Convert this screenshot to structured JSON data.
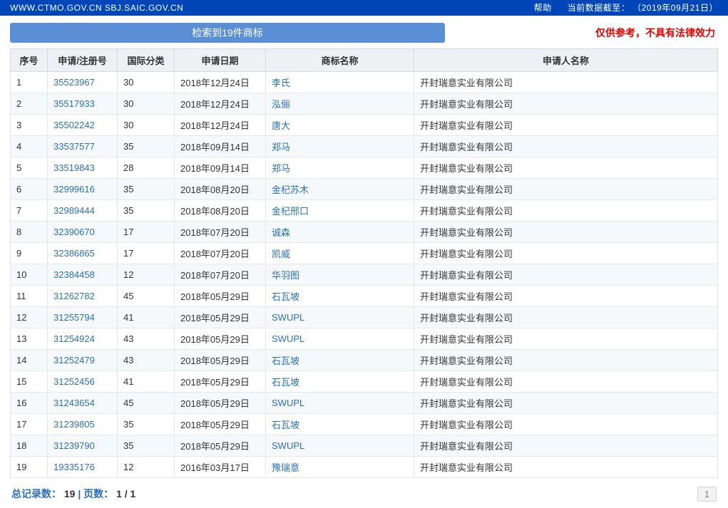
{
  "topbar": {
    "domain": "WWW.CTMO.GOV.CN  SBJ.SAIC.GOV.CN",
    "help": "帮助",
    "dataAsOfLabel": "当前数据截至：",
    "dataAsOfDate": "（2019年09月21日）"
  },
  "resultBadge": "检索到19件商标",
  "disclaimer": "仅供参考，不具有法律效力",
  "columns": [
    "序号",
    "申请/注册号",
    "国际分类",
    "申请日期",
    "商标名称",
    "申请人名称"
  ],
  "rows": [
    {
      "seq": "1",
      "reg": "35523967",
      "cls": "30",
      "date": "2018年12月24日",
      "name": "李氏",
      "applicant": "开封瑞意实业有限公司"
    },
    {
      "seq": "2",
      "reg": "35517933",
      "cls": "30",
      "date": "2018年12月24日",
      "name": "泓俪",
      "applicant": "开封瑞意实业有限公司"
    },
    {
      "seq": "3",
      "reg": "35502242",
      "cls": "30",
      "date": "2018年12月24日",
      "name": "唐大",
      "applicant": "开封瑞意实业有限公司"
    },
    {
      "seq": "4",
      "reg": "33537577",
      "cls": "35",
      "date": "2018年09月14日",
      "name": "郑马",
      "applicant": "开封瑞意实业有限公司"
    },
    {
      "seq": "5",
      "reg": "33519843",
      "cls": "28",
      "date": "2018年09月14日",
      "name": "郑马",
      "applicant": "开封瑞意实业有限公司"
    },
    {
      "seq": "6",
      "reg": "32999616",
      "cls": "35",
      "date": "2018年08月20日",
      "name": "金杞苏木",
      "applicant": "开封瑞意实业有限公司"
    },
    {
      "seq": "7",
      "reg": "32989444",
      "cls": "35",
      "date": "2018年08月20日",
      "name": "金杞邢口",
      "applicant": "开封瑞意实业有限公司"
    },
    {
      "seq": "8",
      "reg": "32390670",
      "cls": "17",
      "date": "2018年07月20日",
      "name": "诚森",
      "applicant": "开封瑞意实业有限公司"
    },
    {
      "seq": "9",
      "reg": "32386865",
      "cls": "17",
      "date": "2018年07月20日",
      "name": "凯威",
      "applicant": "开封瑞意实业有限公司"
    },
    {
      "seq": "10",
      "reg": "32384458",
      "cls": "12",
      "date": "2018年07月20日",
      "name": "华羽图",
      "applicant": "开封瑞意实业有限公司"
    },
    {
      "seq": "11",
      "reg": "31262782",
      "cls": "45",
      "date": "2018年05月29日",
      "name": "石瓦坡",
      "applicant": "开封瑞意实业有限公司"
    },
    {
      "seq": "12",
      "reg": "31255794",
      "cls": "41",
      "date": "2018年05月29日",
      "name": "SWUPL",
      "applicant": "开封瑞意实业有限公司"
    },
    {
      "seq": "13",
      "reg": "31254924",
      "cls": "43",
      "date": "2018年05月29日",
      "name": "SWUPL",
      "applicant": "开封瑞意实业有限公司"
    },
    {
      "seq": "14",
      "reg": "31252479",
      "cls": "43",
      "date": "2018年05月29日",
      "name": "石瓦坡",
      "applicant": "开封瑞意实业有限公司"
    },
    {
      "seq": "15",
      "reg": "31252456",
      "cls": "41",
      "date": "2018年05月29日",
      "name": "石瓦坡",
      "applicant": "开封瑞意实业有限公司"
    },
    {
      "seq": "16",
      "reg": "31243654",
      "cls": "45",
      "date": "2018年05月29日",
      "name": "SWUPL",
      "applicant": "开封瑞意实业有限公司"
    },
    {
      "seq": "17",
      "reg": "31239805",
      "cls": "35",
      "date": "2018年05月29日",
      "name": "石瓦坡",
      "applicant": "开封瑞意实业有限公司"
    },
    {
      "seq": "18",
      "reg": "31239790",
      "cls": "35",
      "date": "2018年05月29日",
      "name": "SWUPL",
      "applicant": "开封瑞意实业有限公司"
    },
    {
      "seq": "19",
      "reg": "19335176",
      "cls": "12",
      "date": "2016年03月17日",
      "name": "豫瑞意",
      "applicant": "开封瑞意实业有限公司"
    }
  ],
  "footer": {
    "totalLabel": "总记录数：",
    "totalValue": "19",
    "sep": " | ",
    "pageLabel": "页数：",
    "pageValue": "1 / 1",
    "pagerBtn": "1"
  }
}
